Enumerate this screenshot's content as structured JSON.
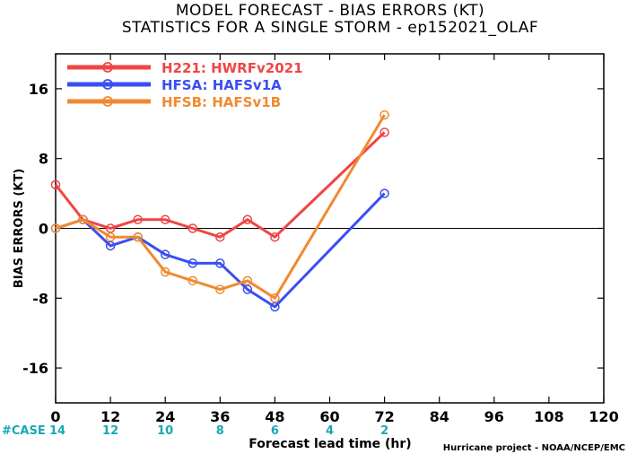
{
  "chart_data": {
    "type": "line",
    "title": "MODEL FORECAST - BIAS ERRORS (KT)",
    "subtitle": "STATISTICS FOR A SINGLE STORM - ep152021_OLAF",
    "xlabel": "Forecast lead time (hr)",
    "ylabel": "BIAS ERRORS (KT)",
    "xlim": [
      0,
      120
    ],
    "ylim": [
      -20,
      20
    ],
    "xticks": [
      0,
      12,
      24,
      36,
      48,
      60,
      72,
      84,
      96,
      108,
      120
    ],
    "yticks": [
      -16,
      -8,
      0,
      8,
      16
    ],
    "zero_line": true,
    "legend_position": "top-left",
    "case_label": "#CASE",
    "cases": [
      {
        "x": 0,
        "n": "14"
      },
      {
        "x": 12,
        "n": "12"
      },
      {
        "x": 24,
        "n": "10"
      },
      {
        "x": 36,
        "n": "8"
      },
      {
        "x": 48,
        "n": "6"
      },
      {
        "x": 60,
        "n": "4"
      },
      {
        "x": 72,
        "n": "2"
      }
    ],
    "credit": "Hurricane project - NOAA/NCEP/EMC",
    "series": [
      {
        "name": "H221: HWRFv2021",
        "color": "#f04545",
        "points": [
          [
            0,
            5
          ],
          [
            6,
            1
          ],
          [
            12,
            0
          ],
          [
            18,
            1
          ],
          [
            24,
            1
          ],
          [
            30,
            0
          ],
          [
            36,
            -1
          ],
          [
            42,
            1
          ],
          [
            48,
            -1
          ],
          [
            72,
            11
          ]
        ]
      },
      {
        "name": "HFSA: HAFSv1A",
        "color": "#3a4ff0",
        "points": [
          [
            0,
            0
          ],
          [
            6,
            1
          ],
          [
            12,
            -2
          ],
          [
            18,
            -1
          ],
          [
            24,
            -3
          ],
          [
            30,
            -4
          ],
          [
            36,
            -4
          ],
          [
            42,
            -7
          ],
          [
            48,
            -9
          ],
          [
            72,
            4
          ]
        ]
      },
      {
        "name": "HFSB: HAFSv1B",
        "color": "#f08a30",
        "points": [
          [
            0,
            0
          ],
          [
            6,
            1
          ],
          [
            12,
            -1
          ],
          [
            18,
            -1
          ],
          [
            24,
            -5
          ],
          [
            30,
            -6
          ],
          [
            36,
            -7
          ],
          [
            42,
            -6
          ],
          [
            48,
            -8
          ],
          [
            72,
            13
          ]
        ]
      }
    ]
  }
}
